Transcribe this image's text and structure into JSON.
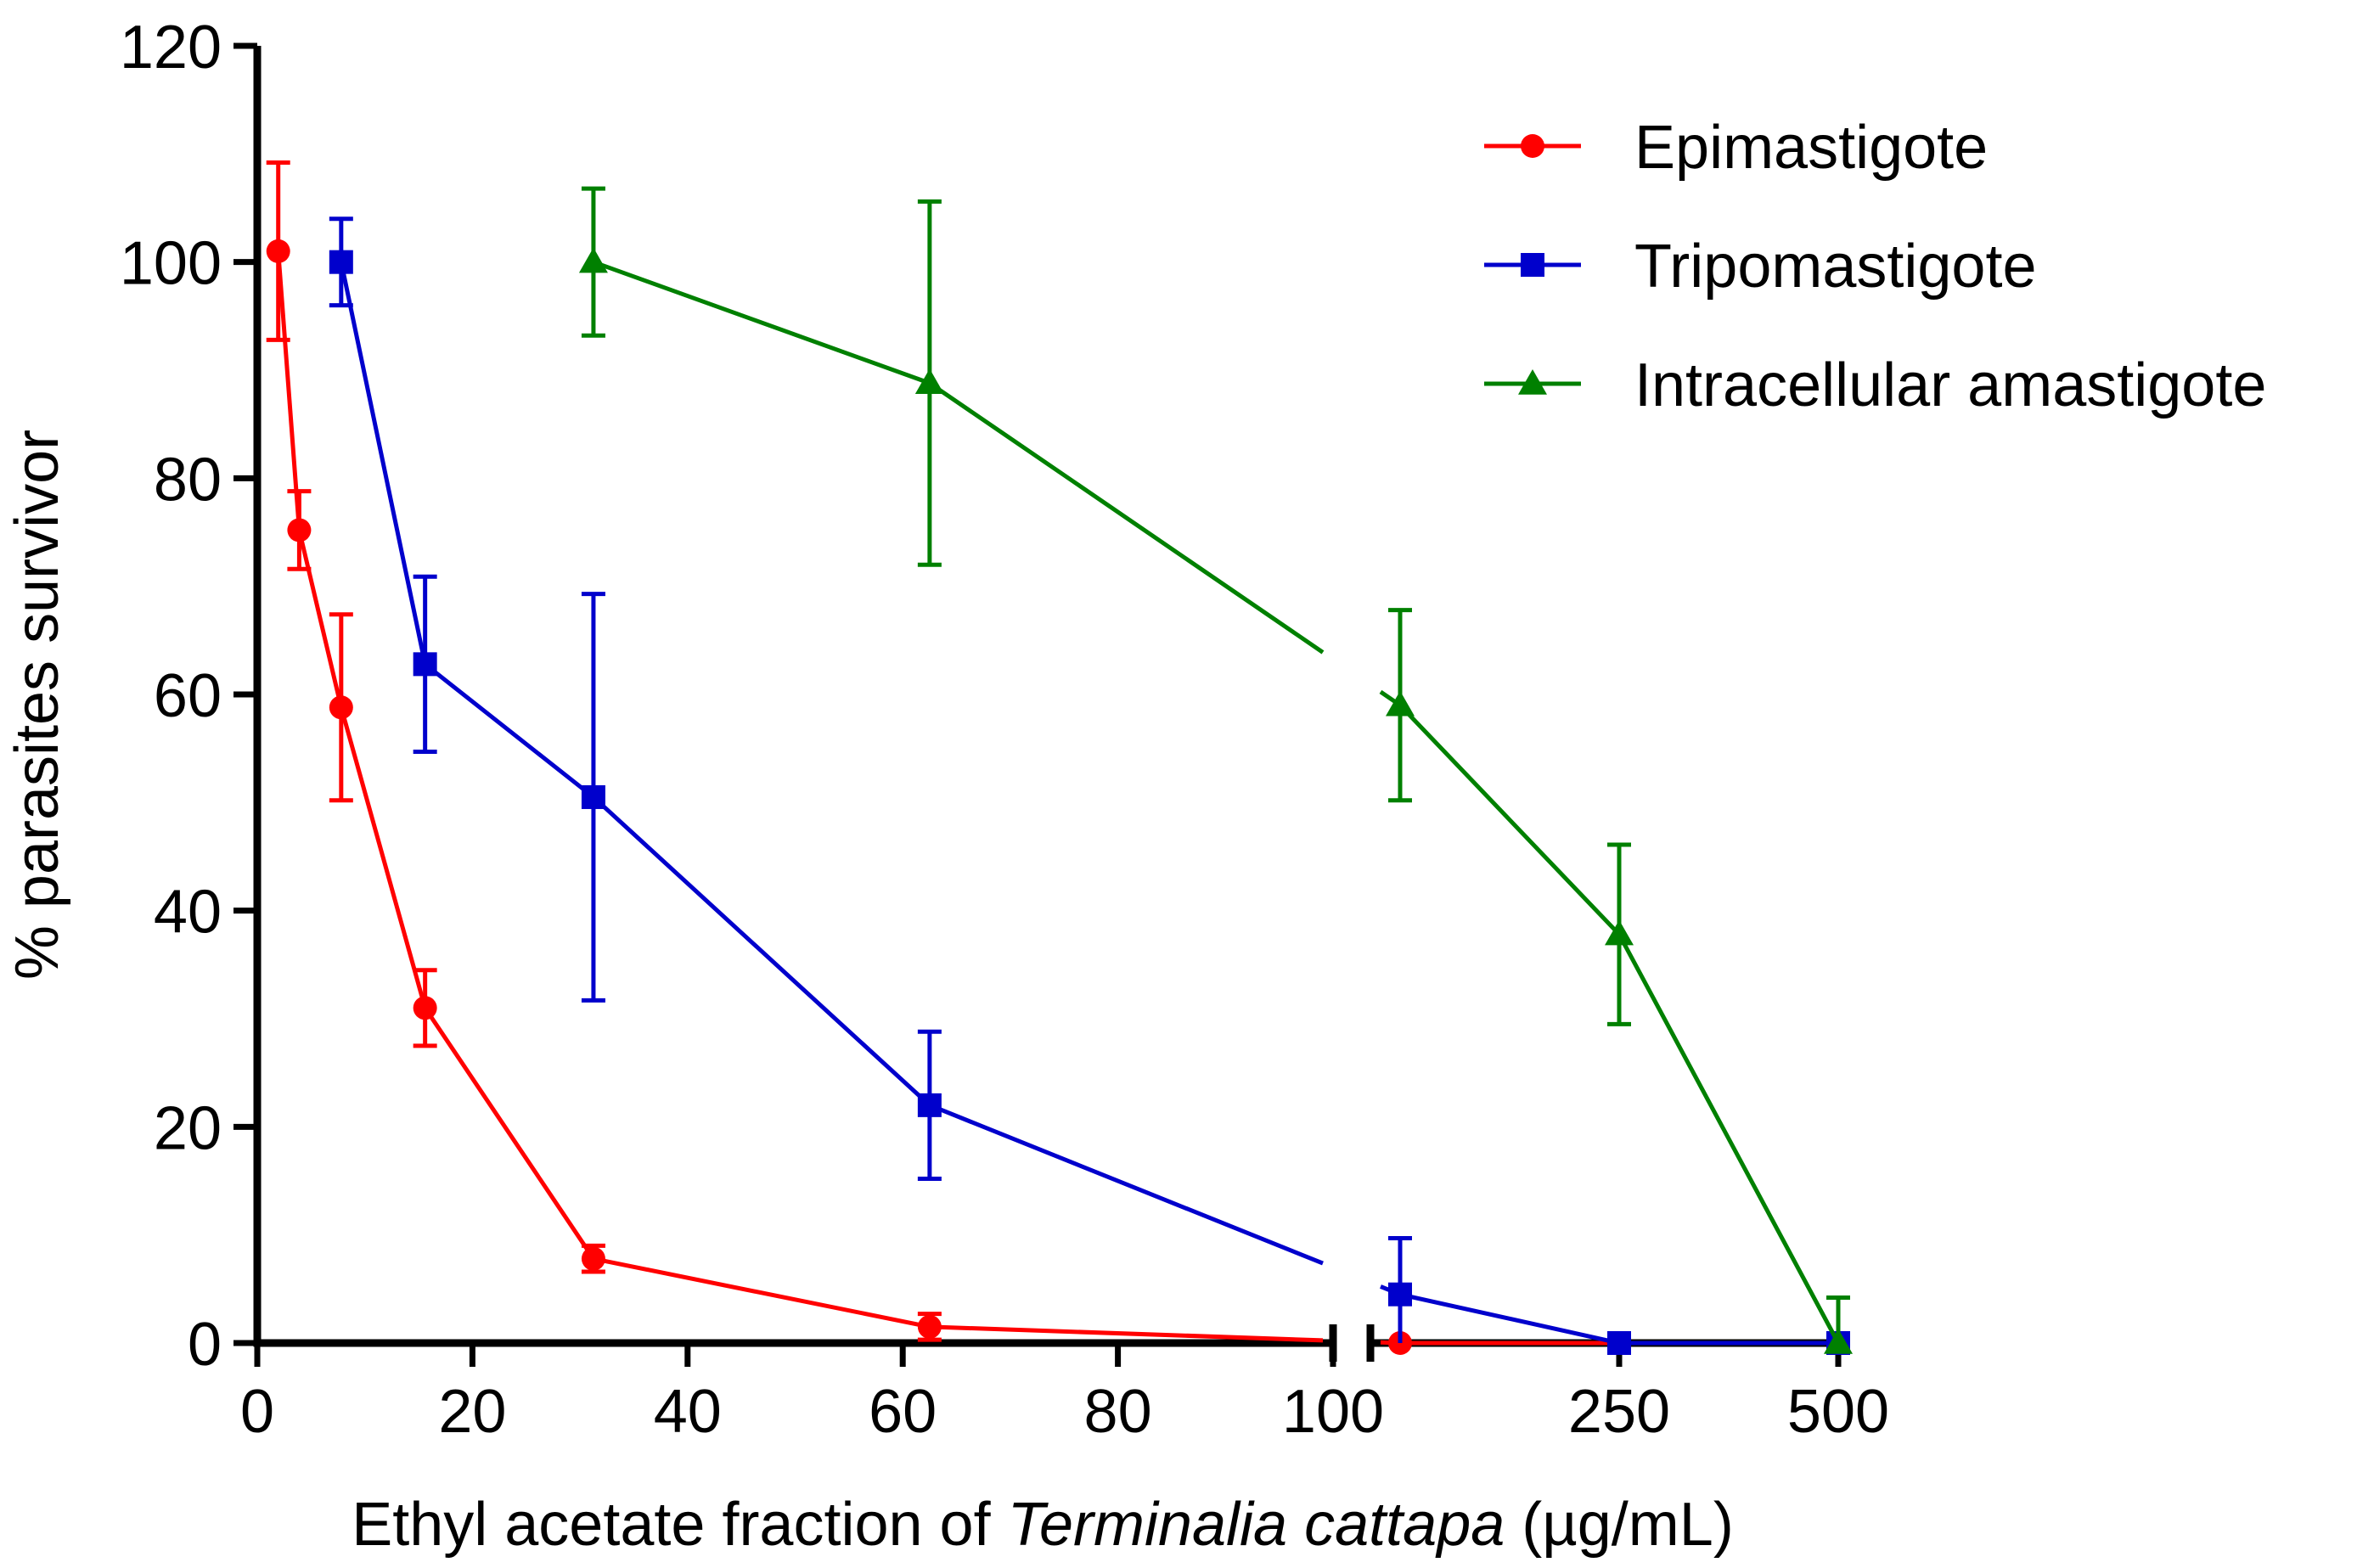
{
  "chart_data": {
    "type": "line",
    "xlabel_parts": [
      "Ethyl acetate fraction of ",
      "Terminalia cattapa",
      " (µg/mL)"
    ],
    "ylabel": "% parasites survivor",
    "ylim": [
      0,
      120
    ],
    "yticks": [
      "0",
      "20",
      "40",
      "60",
      "80",
      "100",
      "120"
    ],
    "x_axis": {
      "segments": [
        {
          "range": [
            0,
            100
          ],
          "ticks": [
            "0",
            "20",
            "40",
            "60",
            "80",
            "100"
          ]
        },
        {
          "range": [
            125,
            500
          ],
          "ticks": [
            "250",
            "500"
          ]
        }
      ]
    },
    "series": [
      {
        "name": "Epimastigote",
        "color": "#ff0000",
        "marker": "circle",
        "x": [
          1.95,
          3.9,
          7.8,
          15.6,
          31.25,
          62.5,
          125,
          250,
          500
        ],
        "y": [
          101,
          75.2,
          58.8,
          31,
          7.8,
          1.5,
          0,
          0,
          0
        ],
        "err": [
          8.2,
          3.6,
          8.6,
          3.5,
          1.2,
          1.2,
          0,
          0,
          0
        ]
      },
      {
        "name": "Tripomastigote",
        "color": "#0000cc",
        "marker": "square",
        "x": [
          7.8,
          15.6,
          31.25,
          62.5,
          125,
          250,
          500
        ],
        "y": [
          100,
          62.8,
          50.5,
          22,
          4.5,
          0,
          0
        ],
        "err": [
          4,
          8.1,
          18.8,
          6.8,
          5.2,
          0,
          0
        ]
      },
      {
        "name": "Intracellular amastigote",
        "color": "#008000",
        "marker": "triangle",
        "x": [
          31.25,
          62.5,
          125,
          250,
          500
        ],
        "y": [
          100,
          88.8,
          59,
          37.8,
          0
        ],
        "err": [
          6.8,
          16.8,
          8.8,
          8.3,
          4.2
        ]
      }
    ]
  }
}
